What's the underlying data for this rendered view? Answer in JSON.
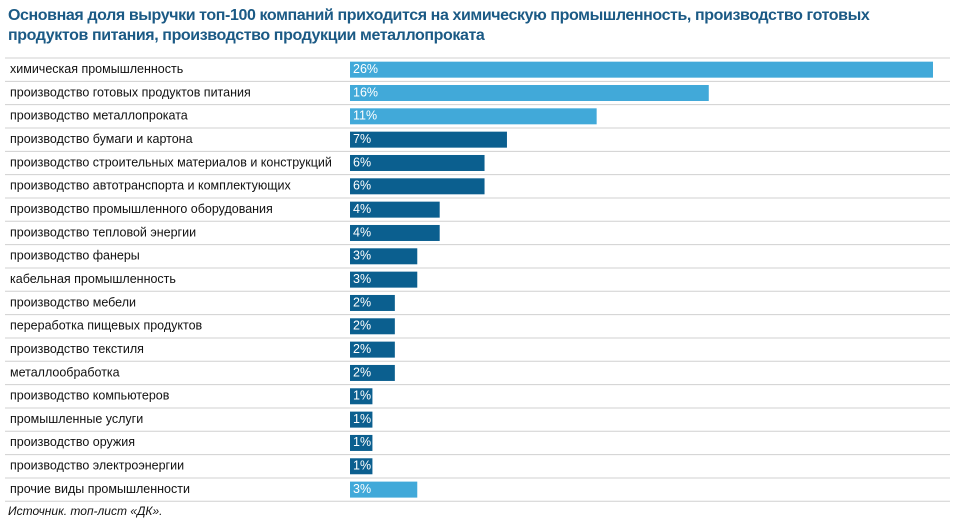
{
  "chart_data": {
    "type": "bar",
    "orientation": "horizontal",
    "title": "Основная доля выручки топ-100 компаний приходится на химическую промышленность, производство готовых продуктов питания, производство продукции металлопроката",
    "categories": [
      "химическая промышленность",
      "производство готовых продуктов питания",
      "производство металлопроката",
      "производство бумаги и картона",
      "производство строительных материалов и конструкций",
      "производство автотранспорта и комплектующих",
      "производство промышленного оборудования",
      "производство тепловой энергии",
      "производство фанеры",
      "кабельная промышленность",
      "производство мебели",
      "переработка пищевых продуктов",
      "производство текстиля",
      "металлообработка",
      "производство компьютеров",
      "промышленные услуги",
      "производство оружия",
      "производство электроэнергии",
      "прочие виды промышленности"
    ],
    "values": [
      26,
      16,
      11,
      7,
      6,
      6,
      4,
      4,
      3,
      3,
      2,
      2,
      2,
      2,
      1,
      1,
      1,
      1,
      3
    ],
    "value_labels": [
      "26%",
      "16%",
      "11%",
      "7%",
      "6%",
      "6%",
      "4%",
      "4%",
      "3%",
      "3%",
      "2%",
      "2%",
      "2%",
      "2%",
      "1%",
      "1%",
      "1%",
      "1%",
      "3%"
    ],
    "colors": [
      "#41a9d9",
      "#41a9d9",
      "#41a9d9",
      "#0b5f8f",
      "#0b5f8f",
      "#0b5f8f",
      "#0b5f8f",
      "#0b5f8f",
      "#0b5f8f",
      "#0b5f8f",
      "#0b5f8f",
      "#0b5f8f",
      "#0b5f8f",
      "#0b5f8f",
      "#0b5f8f",
      "#0b5f8f",
      "#0b5f8f",
      "#0b5f8f",
      "#41a9d9"
    ],
    "source": "Источник. топ-лист «ДК»."
  }
}
